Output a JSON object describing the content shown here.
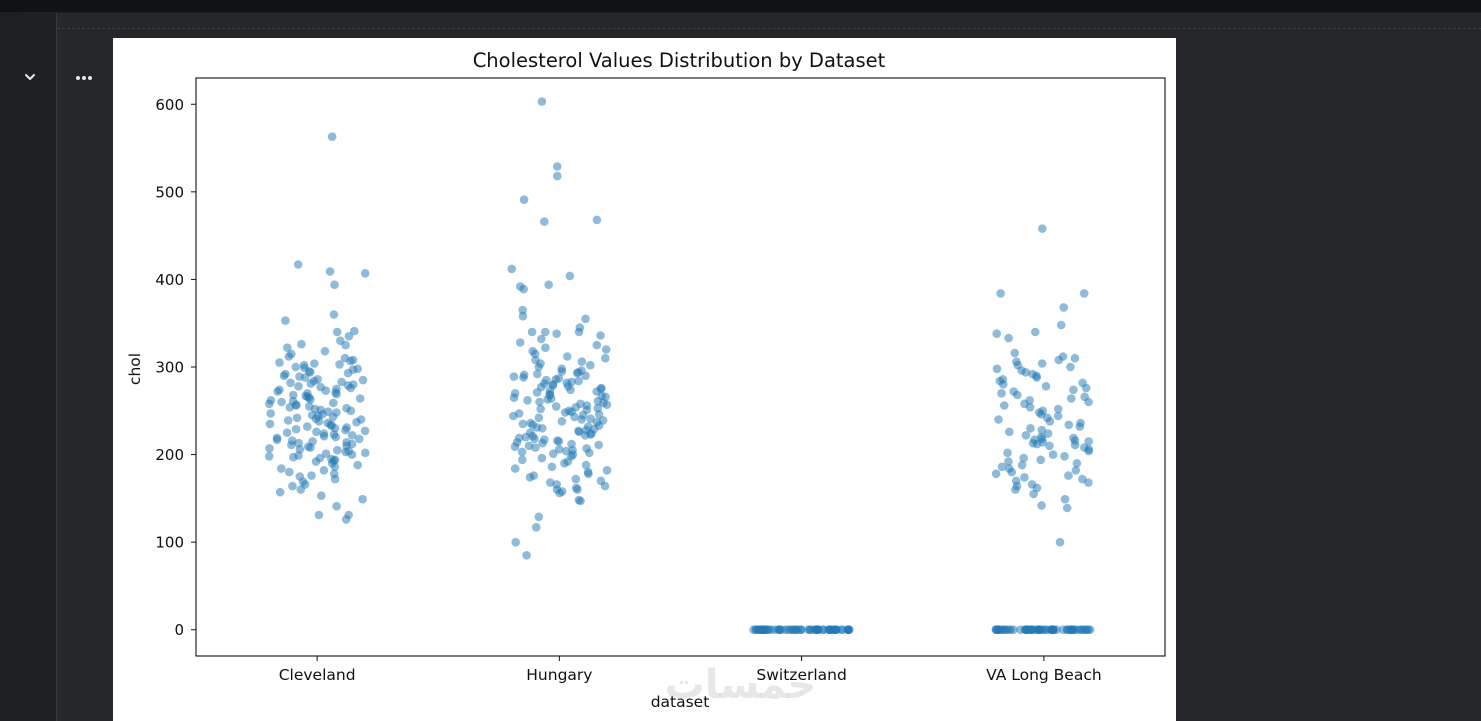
{
  "notebook": {
    "collapse_icon": "chevron-down-icon",
    "more_icon": "more-horizontal-icon"
  },
  "chart_data": {
    "type": "scatter",
    "subtype": "stripplot",
    "title": "Cholesterol Values Distribution by Dataset",
    "xlabel": "dataset",
    "ylabel": "chol",
    "categories": [
      "Cleveland",
      "Hungary",
      "Switzerland",
      "VA Long Beach"
    ],
    "ylim": [
      -30,
      630
    ],
    "yticks": [
      0,
      100,
      200,
      300,
      400,
      500,
      600
    ],
    "grid": false,
    "color": "#1f77b4",
    "alpha": 0.5,
    "series": [
      {
        "category": "Cleveland",
        "values": [
          563,
          417,
          409,
          407,
          394,
          360,
          353,
          341,
          340,
          335,
          330,
          326,
          325,
          322,
          318,
          315,
          312,
          310,
          308,
          307,
          305,
          304,
          303,
          302,
          300,
          299,
          298,
          297,
          295,
          294,
          293,
          292,
          290,
          289,
          288,
          286,
          285,
          284,
          283,
          282,
          281,
          280,
          279,
          278,
          277,
          276,
          275,
          274,
          273,
          272,
          271,
          270,
          269,
          268,
          267,
          266,
          265,
          264,
          263,
          262,
          261,
          260,
          259,
          258,
          257,
          256,
          255,
          254,
          253,
          252,
          251,
          250,
          249,
          248,
          247,
          246,
          245,
          244,
          243,
          242,
          241,
          240,
          239,
          238,
          237,
          236,
          235,
          234,
          233,
          232,
          231,
          230,
          229,
          228,
          227,
          226,
          225,
          224,
          223,
          222,
          221,
          220,
          219,
          218,
          217,
          216,
          215,
          214,
          213,
          212,
          211,
          210,
          209,
          208,
          207,
          206,
          205,
          204,
          203,
          202,
          201,
          200,
          199,
          198,
          197,
          196,
          195,
          194,
          193,
          192,
          190,
          188,
          186,
          184,
          182,
          180,
          178,
          176,
          175,
          172,
          169,
          166,
          164,
          160,
          157,
          153,
          149,
          141,
          131,
          131,
          126
        ]
      },
      {
        "category": "Hungary",
        "values": [
          603,
          529,
          518,
          491,
          468,
          466,
          412,
          404,
          394,
          392,
          389,
          365,
          358,
          355,
          345,
          340,
          340,
          340,
          338,
          336,
          332,
          328,
          325,
          322,
          320,
          318,
          315,
          312,
          310,
          308,
          306,
          304,
          302,
          300,
          298,
          296,
          295,
          294,
          293,
          292,
          291,
          290,
          289,
          288,
          287,
          286,
          285,
          284,
          283,
          282,
          281,
          280,
          279,
          278,
          277,
          276,
          275,
          274,
          273,
          272,
          271,
          270,
          269,
          268,
          267,
          266,
          265,
          264,
          263,
          262,
          261,
          260,
          259,
          258,
          257,
          256,
          255,
          254,
          253,
          252,
          251,
          250,
          249,
          248,
          247,
          246,
          245,
          244,
          243,
          242,
          241,
          240,
          239,
          238,
          237,
          236,
          235,
          234,
          233,
          232,
          231,
          230,
          229,
          228,
          227,
          226,
          225,
          224,
          223,
          222,
          221,
          220,
          219,
          218,
          217,
          216,
          215,
          214,
          213,
          212,
          211,
          210,
          209,
          208,
          207,
          206,
          205,
          204,
          203,
          202,
          201,
          200,
          198,
          196,
          194,
          192,
          190,
          188,
          186,
          184,
          182,
          180,
          178,
          176,
          174,
          172,
          170,
          168,
          166,
          164,
          162,
          160,
          160,
          158,
          156,
          148,
          147,
          129,
          117,
          100,
          85
        ]
      },
      {
        "category": "Switzerland",
        "values": [
          0,
          0,
          0,
          0,
          0,
          0,
          0,
          0,
          0,
          0,
          0,
          0,
          0,
          0,
          0,
          0,
          0,
          0,
          0,
          0,
          0,
          0,
          0,
          0,
          0,
          0,
          0,
          0,
          0,
          0,
          0,
          0,
          0,
          0,
          0,
          0,
          0,
          0,
          0,
          0,
          0,
          0,
          0,
          0,
          0,
          0,
          0,
          0,
          0,
          0,
          0,
          0,
          0,
          0,
          0,
          0,
          0,
          0,
          0,
          0
        ]
      },
      {
        "category": "VA Long Beach",
        "values": [
          458,
          384,
          384,
          368,
          348,
          340,
          338,
          333,
          316,
          312,
          310,
          308,
          306,
          304,
          302,
          300,
          298,
          296,
          294,
          292,
          290,
          288,
          286,
          284,
          282,
          280,
          278,
          276,
          274,
          272,
          270,
          268,
          266,
          264,
          262,
          260,
          258,
          256,
          254,
          252,
          250,
          248,
          246,
          244,
          242,
          240,
          238,
          236,
          234,
          232,
          230,
          228,
          226,
          224,
          222,
          220,
          219,
          218,
          217,
          216,
          215,
          214,
          213,
          212,
          211,
          210,
          208,
          206,
          204,
          202,
          200,
          198,
          196,
          194,
          192,
          190,
          188,
          186,
          184,
          182,
          180,
          178,
          176,
          174,
          172,
          170,
          168,
          166,
          164,
          162,
          160,
          155,
          149,
          142,
          139,
          100,
          0,
          0,
          0,
          0,
          0,
          0,
          0,
          0,
          0,
          0,
          0,
          0,
          0,
          0,
          0,
          0,
          0,
          0,
          0,
          0,
          0,
          0,
          0,
          0,
          0,
          0,
          0,
          0,
          0,
          0,
          0,
          0,
          0,
          0,
          0,
          0,
          0,
          0,
          0,
          0,
          0,
          0,
          0,
          0,
          0,
          0,
          0,
          0,
          0,
          0,
          0,
          0,
          0,
          0,
          0,
          0
        ]
      }
    ]
  }
}
